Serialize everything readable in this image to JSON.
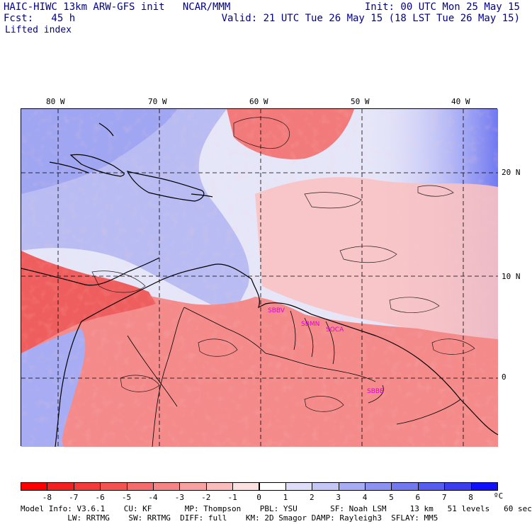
{
  "header": {
    "title": "HAIC-HIWC 13km ARW-GFS init   NCAR/MMM",
    "init": "Init: 00 UTC Mon 25 May 15",
    "fcst": "Fcst:   45 h",
    "valid": "Valid: 21 UTC Tue 26 May 15 (18 LST Tue 26 May 15)",
    "field": "Lifted index"
  },
  "map": {
    "lon_labels": [
      "80 W",
      "70 W",
      "60 W",
      "50 W",
      "40 W"
    ],
    "lat_labels": [
      "20 N",
      "10 N",
      "0"
    ],
    "lon_range": [
      -82,
      -35
    ],
    "lat_range": [
      -7,
      26
    ],
    "stations": [
      "SBBV",
      "SBMN",
      "SOCA",
      "SBBE"
    ],
    "colors": {
      "negative": "#f06060",
      "positive": "#6a72f0",
      "neutral": "#ffffff"
    }
  },
  "colorbar": {
    "ticks": [
      "-8",
      "-7",
      "-6",
      "-5",
      "-4",
      "-3",
      "-2",
      "-1",
      "0",
      "1",
      "2",
      "3",
      "4",
      "5",
      "6",
      "7",
      "8"
    ],
    "unit": "ºC",
    "colors": [
      "#ff0000",
      "#f52020",
      "#f53a3a",
      "#f55252",
      "#f56a6a",
      "#f78484",
      "#f9a0a0",
      "#fbbcbc",
      "#fde0e0",
      "#ffffff",
      "#dedef8",
      "#c4c6f5",
      "#a8acf3",
      "#8c92f2",
      "#7278f0",
      "#565cef",
      "#3a3eee",
      "#1010ff"
    ]
  },
  "footer": {
    "line1": "Model Info: V3.6.1    CU: KF       MP: Thompson    PBL: YSU       SF: Noah LSM     13 km   51 levels   60 sec",
    "line2": "          LW: RRTMG    SW: RRTMG  DIFF: full    KM: 2D Smagor DAMP: Rayleigh3  SFLAY: MM5"
  }
}
